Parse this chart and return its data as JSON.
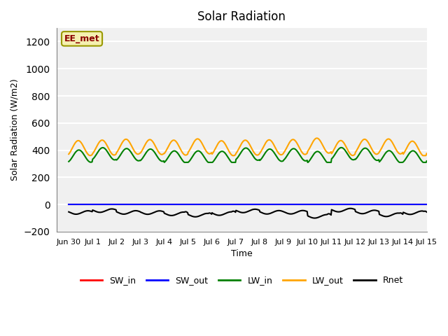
{
  "title": "Solar Radiation",
  "xlabel": "Time",
  "ylabel": "Solar Radiation (W/m2)",
  "ylim": [
    -200,
    1300
  ],
  "yticks": [
    -200,
    0,
    200,
    400,
    600,
    800,
    1000,
    1200
  ],
  "annotation": "EE_met",
  "background_color": "#f0f0f0",
  "grid_color": "white",
  "lines": {
    "SW_in": {
      "color": "red",
      "lw": 1.5
    },
    "SW_out": {
      "color": "blue",
      "lw": 1.5
    },
    "LW_in": {
      "color": "green",
      "lw": 1.5
    },
    "LW_out": {
      "color": "orange",
      "lw": 1.5
    },
    "Rnet": {
      "color": "black",
      "lw": 1.5
    }
  },
  "n_days": 15,
  "start_day": -0.5,
  "points_per_day": 48
}
